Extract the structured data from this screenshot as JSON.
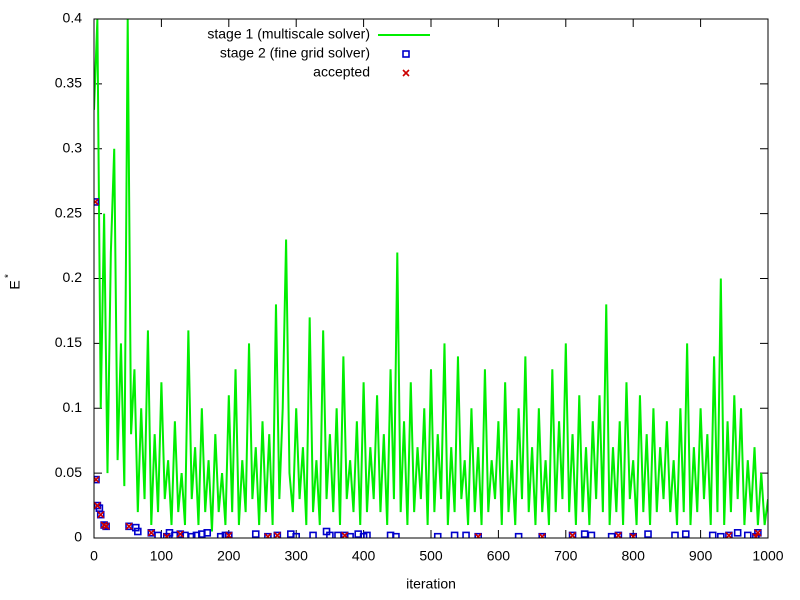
{
  "chart_data": {
    "type": "line",
    "xlabel": "iteration",
    "ylabel": {
      "base": "E",
      "sup": "*"
    },
    "xlim": [
      0,
      1000
    ],
    "xticks": [
      0,
      100,
      200,
      300,
      400,
      500,
      600,
      700,
      800,
      900,
      1000
    ],
    "ylim": [
      0,
      0.4
    ],
    "yticks": [
      0,
      0.05,
      0.1,
      0.15,
      0.2,
      0.25,
      0.3,
      0.35,
      0.4
    ],
    "grid": false,
    "legend": "top",
    "series": [
      {
        "name": "stage 1 (multiscale solver)",
        "color": "#00ee00",
        "style": "line",
        "x": [
          0,
          5,
          10,
          15,
          20,
          25,
          30,
          35,
          40,
          45,
          50,
          55,
          60,
          65,
          70,
          75,
          80,
          85,
          90,
          95,
          100,
          105,
          110,
          115,
          120,
          125,
          130,
          135,
          140,
          145,
          150,
          155,
          160,
          165,
          170,
          175,
          180,
          185,
          190,
          195,
          200,
          205,
          210,
          215,
          220,
          225,
          230,
          235,
          240,
          245,
          250,
          255,
          260,
          265,
          270,
          275,
          280,
          285,
          290,
          295,
          300,
          305,
          310,
          315,
          320,
          325,
          330,
          335,
          340,
          345,
          350,
          355,
          360,
          365,
          370,
          375,
          380,
          385,
          390,
          395,
          400,
          405,
          410,
          415,
          420,
          425,
          430,
          435,
          440,
          445,
          450,
          455,
          460,
          465,
          470,
          475,
          480,
          485,
          490,
          495,
          500,
          505,
          510,
          515,
          520,
          525,
          530,
          535,
          540,
          545,
          550,
          555,
          560,
          565,
          570,
          575,
          580,
          585,
          590,
          595,
          600,
          605,
          610,
          615,
          620,
          625,
          630,
          635,
          640,
          645,
          650,
          655,
          660,
          665,
          670,
          675,
          680,
          685,
          690,
          695,
          700,
          705,
          710,
          715,
          720,
          725,
          730,
          735,
          740,
          745,
          750,
          755,
          760,
          765,
          770,
          775,
          780,
          785,
          790,
          795,
          800,
          805,
          810,
          815,
          820,
          825,
          830,
          835,
          840,
          845,
          850,
          855,
          860,
          865,
          870,
          875,
          880,
          885,
          890,
          895,
          900,
          905,
          910,
          915,
          920,
          925,
          930,
          935,
          940,
          945,
          950,
          955,
          960,
          965,
          970,
          975,
          980,
          985,
          990,
          995,
          1000
        ],
        "values": [
          0.33,
          0.4,
          0.1,
          0.25,
          0.05,
          0.22,
          0.3,
          0.06,
          0.15,
          0.04,
          0.4,
          0.08,
          0.13,
          0.02,
          0.1,
          0.03,
          0.16,
          0.01,
          0.08,
          0.02,
          0.12,
          0.03,
          0.06,
          0.01,
          0.09,
          0.02,
          0.05,
          0.01,
          0.16,
          0.03,
          0.07,
          0.01,
          0.1,
          0.02,
          0.06,
          0.005,
          0.08,
          0.02,
          0.05,
          0.01,
          0.11,
          0.02,
          0.13,
          0.01,
          0.06,
          0.02,
          0.15,
          0.03,
          0.07,
          0.01,
          0.09,
          0.02,
          0.08,
          0.01,
          0.18,
          0.03,
          0.1,
          0.23,
          0.05,
          0.02,
          0.1,
          0.03,
          0.07,
          0.01,
          0.17,
          0.02,
          0.06,
          0.01,
          0.16,
          0.03,
          0.08,
          0.02,
          0.1,
          0.01,
          0.14,
          0.03,
          0.06,
          0.02,
          0.09,
          0.01,
          0.12,
          0.02,
          0.07,
          0.03,
          0.11,
          0.02,
          0.08,
          0.01,
          0.13,
          0.03,
          0.22,
          0.02,
          0.09,
          0.01,
          0.12,
          0.02,
          0.07,
          0.03,
          0.1,
          0.01,
          0.13,
          0.02,
          0.08,
          0.03,
          0.15,
          0.01,
          0.07,
          0.02,
          0.14,
          0.03,
          0.06,
          0.01,
          0.1,
          0.02,
          0.07,
          0.01,
          0.13,
          0.02,
          0.06,
          0.03,
          0.09,
          0.01,
          0.12,
          0.02,
          0.06,
          0.01,
          0.1,
          0.03,
          0.14,
          0.02,
          0.07,
          0.01,
          0.1,
          0.02,
          0.06,
          0.01,
          0.13,
          0.02,
          0.09,
          0.03,
          0.15,
          0.02,
          0.08,
          0.01,
          0.11,
          0.02,
          0.07,
          0.01,
          0.09,
          0.03,
          0.11,
          0.02,
          0.18,
          0.01,
          0.07,
          0.02,
          0.09,
          0.01,
          0.12,
          0.03,
          0.06,
          0.01,
          0.11,
          0.02,
          0.08,
          0.01,
          0.1,
          0.02,
          0.07,
          0.03,
          0.09,
          0.02,
          0.06,
          0.01,
          0.1,
          0.02,
          0.15,
          0.01,
          0.07,
          0.02,
          0.1,
          0.03,
          0.08,
          0.01,
          0.14,
          0.02,
          0.2,
          0.01,
          0.09,
          0.02,
          0.11,
          0.03,
          0.1,
          0.01,
          0.06,
          0.02,
          0.07,
          0.01,
          0.05,
          0.01,
          0.03
        ]
      },
      {
        "name": "stage 2 (fine grid solver)",
        "color": "#0000cc",
        "style": "square",
        "x": [
          2,
          3,
          5,
          8,
          10,
          15,
          18,
          52,
          62,
          65,
          85,
          95,
          108,
          112,
          120,
          128,
          135,
          145,
          152,
          160,
          168,
          188,
          195,
          200,
          240,
          258,
          272,
          292,
          300,
          325,
          345,
          350,
          362,
          372,
          380,
          392,
          400,
          405,
          440,
          448,
          510,
          535,
          552,
          570,
          630,
          665,
          710,
          728,
          738,
          768,
          778,
          800,
          822,
          862,
          878,
          918,
          930,
          942,
          955,
          970,
          982,
          985
        ],
        "values": [
          0.259,
          0.045,
          0.025,
          0.023,
          0.018,
          0.01,
          0.009,
          0.009,
          0.008,
          0.005,
          0.004,
          0.002,
          0.001,
          0.004,
          0.002,
          0.003,
          0.002,
          0.001,
          0.002,
          0.003,
          0.004,
          0.001,
          0.002,
          0.002,
          0.003,
          0.001,
          0.002,
          0.003,
          0.001,
          0.002,
          0.005,
          0.002,
          0.002,
          0.002,
          0.001,
          0.003,
          0.001,
          0.002,
          0.002,
          0.001,
          0.001,
          0.002,
          0.002,
          0.001,
          0.001,
          0.001,
          0.002,
          0.003,
          0.002,
          0.001,
          0.002,
          0.001,
          0.003,
          0.002,
          0.003,
          0.002,
          0.001,
          0.002,
          0.004,
          0.002,
          0.001,
          0.004
        ]
      },
      {
        "name": "accepted",
        "color": "#cc0000",
        "style": "cross",
        "x": [
          2,
          3,
          5,
          10,
          15,
          18,
          52,
          85,
          108,
          128,
          200,
          258,
          272,
          372,
          570,
          665,
          710,
          778,
          800,
          942,
          982,
          985
        ],
        "values": [
          0.259,
          0.045,
          0.025,
          0.018,
          0.01,
          0.009,
          0.009,
          0.004,
          0.001,
          0.003,
          0.002,
          0.001,
          0.002,
          0.002,
          0.001,
          0.001,
          0.002,
          0.002,
          0.001,
          0.002,
          0.001,
          0.004
        ]
      }
    ]
  }
}
